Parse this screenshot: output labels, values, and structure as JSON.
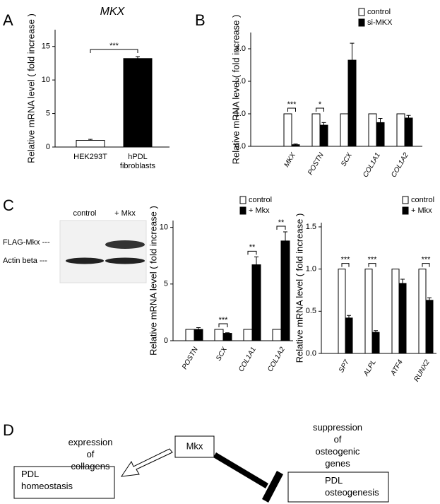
{
  "panels": [
    "A",
    "B",
    "C",
    "D"
  ],
  "chart_data": [
    {
      "type": "bar",
      "title": "MKX",
      "ylabel": "Relative mRNA level ( fold increase )",
      "categories": [
        "HEK293T",
        "hPDL fibroblasts"
      ],
      "values": [
        1.0,
        13.2
      ],
      "errors": [
        0.15,
        0.3
      ],
      "colors": [
        "#ffffff",
        "#000000"
      ],
      "significance": "***",
      "ylim": [
        0,
        17.5
      ],
      "yticks": [
        0,
        5,
        10,
        15
      ]
    },
    {
      "type": "grouped-bar",
      "ylabel": "Relative mRNA level ( fold increase )",
      "categories": [
        "MKX",
        "POSTN",
        "SCX",
        "COL1A1",
        "COL1A2"
      ],
      "series": [
        {
          "name": "control",
          "color": "#ffffff",
          "values": [
            1,
            1,
            1,
            1,
            1
          ],
          "errors": [
            0,
            0,
            0,
            0,
            0
          ]
        },
        {
          "name": "si-MKX",
          "color": "#000000",
          "values": [
            0.05,
            0.65,
            2.65,
            0.73,
            0.87
          ],
          "errors": [
            0.02,
            0.08,
            0.52,
            0.13,
            0.08
          ]
        }
      ],
      "annotations": [
        "***",
        "*",
        null,
        null,
        null
      ],
      "ylim": [
        0,
        3.5
      ],
      "yticks": [
        {
          "value": 0,
          "label": "0.0"
        },
        {
          "value": 1,
          "label": "1.0"
        },
        {
          "value": 2,
          "label": "2.0"
        },
        {
          "value": 3,
          "label": "3.0"
        }
      ]
    },
    {
      "type": "grouped-bar",
      "ylabel": "Relative mRNA level ( fold increase )",
      "categories": [
        "POSTN",
        "SCX",
        "COL1A1",
        "COL1A2"
      ],
      "series": [
        {
          "name": "control",
          "color": "#ffffff",
          "values": [
            1,
            1,
            1,
            1
          ],
          "errors": [
            0,
            0,
            0,
            0
          ]
        },
        {
          "name": "+ Mkx",
          "color": "#000000",
          "values": [
            1.0,
            0.65,
            6.7,
            8.8
          ],
          "errors": [
            0.15,
            0.05,
            0.7,
            0.8
          ]
        }
      ],
      "annotations": [
        null,
        "***",
        "**",
        "**"
      ],
      "ylim": [
        0,
        10.6
      ],
      "yticks": [
        0,
        5,
        10
      ]
    },
    {
      "type": "grouped-bar",
      "ylabel": "Relative mRNA level ( fold increase )",
      "categories": [
        "SP7",
        "ALPL",
        "ATF4",
        "RUNX2"
      ],
      "series": [
        {
          "name": "control",
          "color": "#ffffff",
          "values": [
            1,
            1,
            1,
            1
          ],
          "errors": [
            0,
            0,
            0,
            0
          ]
        },
        {
          "name": "+ Mkx",
          "color": "#000000",
          "values": [
            0.42,
            0.25,
            0.83,
            0.63
          ],
          "errors": [
            0.03,
            0.02,
            0.05,
            0.03
          ]
        }
      ],
      "annotations": [
        "***",
        "***",
        null,
        "***"
      ],
      "ylim": [
        0,
        1.55
      ],
      "yticks": [
        {
          "value": 0,
          "label": "0.0"
        },
        0.5,
        {
          "value": 1,
          "label": "1.0"
        },
        1.5
      ]
    }
  ],
  "blot": {
    "lanes": [
      "control",
      "+ Mkx"
    ],
    "bands": [
      "FLAG-Mkx ---",
      "Actin beta ---"
    ]
  },
  "diagram": {
    "center": "Mkx",
    "left_label": "expression of collagens",
    "left_box": "PDL homeostasis",
    "right_label": "suppression of osteogenic genes",
    "right_box": "PDL osteogenesis"
  }
}
